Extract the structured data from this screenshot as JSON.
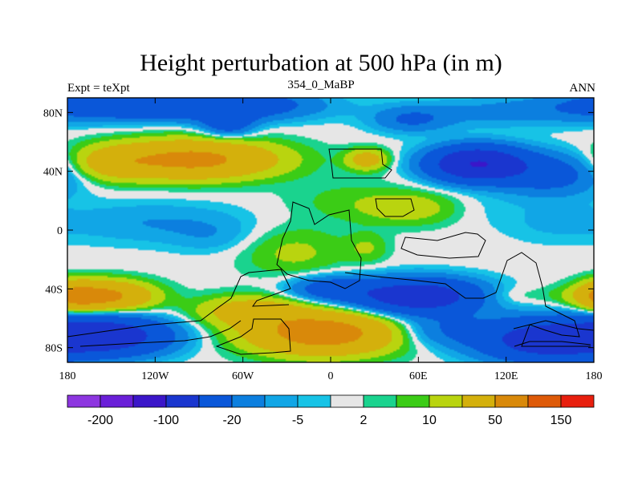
{
  "chart_data": {
    "type": "heatmap",
    "title": "Height perturbation at 500 hPa (in m)",
    "left_string": "Expt = teXpt",
    "center_string": "354_0_MaBP",
    "right_string": "ANN",
    "x_range": [
      -180,
      180
    ],
    "y_range": [
      -90,
      90
    ],
    "x_ticks": [
      {
        "value": -180,
        "label": "180"
      },
      {
        "value": -120,
        "label": "120W"
      },
      {
        "value": -60,
        "label": "60W"
      },
      {
        "value": 0,
        "label": "0"
      },
      {
        "value": 60,
        "label": "60E"
      },
      {
        "value": 120,
        "label": "120E"
      },
      {
        "value": 180,
        "label": "180"
      }
    ],
    "y_ticks": [
      {
        "value": 80,
        "label": "80N"
      },
      {
        "value": 40,
        "label": "40N"
      },
      {
        "value": 0,
        "label": "0"
      },
      {
        "value": -40,
        "label": "40S"
      },
      {
        "value": -80,
        "label": "80S"
      }
    ],
    "colorbar": {
      "colors": [
        "#8d36e0",
        "#6a1fd8",
        "#3b16c9",
        "#1a36cf",
        "#0a57d9",
        "#0c7fdf",
        "#11a6e6",
        "#17c3e6",
        "#e6e6e6",
        "#1ad38e",
        "#3bcc16",
        "#b9d40f",
        "#d4b00c",
        "#d9890a",
        "#de5a08",
        "#e81f0e"
      ],
      "labels": [
        {
          "text": "-200",
          "boundary": 1
        },
        {
          "text": "-100",
          "boundary": 3
        },
        {
          "text": "-20",
          "boundary": 5
        },
        {
          "text": "-5",
          "boundary": 7
        },
        {
          "text": "2",
          "boundary": 9
        },
        {
          "text": "10",
          "boundary": 11
        },
        {
          "text": "50",
          "boundary": 13
        },
        {
          "text": "150",
          "boundary": 15
        }
      ]
    },
    "features": [
      {
        "lon": -150,
        "lat": 85,
        "amp": -35,
        "sx": 40,
        "sy": 7
      },
      {
        "lon": -70,
        "lat": 85,
        "amp": -40,
        "sx": 40,
        "sy": 7
      },
      {
        "lon": -70,
        "lat": 72,
        "amp": -30,
        "sx": 12,
        "sy": 6
      },
      {
        "lon": -95,
        "lat": 48,
        "amp": 60,
        "sx": 40,
        "sy": 9
      },
      {
        "lon": -150,
        "lat": 45,
        "amp": 20,
        "sx": 18,
        "sy": 8
      },
      {
        "lon": 25,
        "lat": 48,
        "amp": 30,
        "sx": 10,
        "sy": 5
      },
      {
        "lon": 55,
        "lat": 75,
        "amp": -20,
        "sx": 18,
        "sy": 6
      },
      {
        "lon": 115,
        "lat": 80,
        "amp": -12,
        "sx": 45,
        "sy": 7
      },
      {
        "lon": 100,
        "lat": 45,
        "amp": -100,
        "sx": 22,
        "sy": 8
      },
      {
        "lon": 150,
        "lat": 38,
        "amp": -30,
        "sx": 25,
        "sy": 10
      },
      {
        "lon": 10,
        "lat": 20,
        "amp": 6,
        "sx": 30,
        "sy": 10
      },
      {
        "lon": 55,
        "lat": 15,
        "amp": 15,
        "sx": 25,
        "sy": 8
      },
      {
        "lon": -25,
        "lat": -15,
        "amp": 12,
        "sx": 25,
        "sy": 12
      },
      {
        "lon": 25,
        "lat": -12,
        "amp": 10,
        "sx": 10,
        "sy": 7
      },
      {
        "lon": -120,
        "lat": 5,
        "amp": -10,
        "sx": 45,
        "sy": 10
      },
      {
        "lon": -80,
        "lat": -5,
        "amp": -6,
        "sx": 20,
        "sy": 8
      },
      {
        "lon": 100,
        "lat": 15,
        "amp": -3,
        "sx": 20,
        "sy": 8
      },
      {
        "lon": 150,
        "lat": 5,
        "amp": -5,
        "sx": 25,
        "sy": 10
      },
      {
        "lon": 120,
        "lat": -45,
        "amp": 8,
        "sx": 20,
        "sy": 5
      },
      {
        "lon": 165,
        "lat": -45,
        "amp": 4,
        "sx": 12,
        "sy": 5
      },
      {
        "lon": -155,
        "lat": -45,
        "amp": 60,
        "sx": 22,
        "sy": 7
      },
      {
        "lon": -175,
        "lat": -45,
        "amp": 30,
        "sx": 10,
        "sy": 7
      },
      {
        "lon": 60,
        "lat": -45,
        "amp": -80,
        "sx": 30,
        "sy": 8
      },
      {
        "lon": 0,
        "lat": -40,
        "amp": -30,
        "sx": 20,
        "sy": 6
      },
      {
        "lon": -55,
        "lat": -55,
        "amp": 30,
        "sx": 25,
        "sy": 7
      },
      {
        "lon": -5,
        "lat": -70,
        "amp": 70,
        "sx": 35,
        "sy": 10
      },
      {
        "lon": -155,
        "lat": -72,
        "amp": -80,
        "sx": 30,
        "sy": 9
      },
      {
        "lon": 145,
        "lat": -75,
        "amp": -70,
        "sx": 30,
        "sy": 10
      },
      {
        "lon": 75,
        "lat": -68,
        "amp": -20,
        "sx": 25,
        "sy": 8
      }
    ]
  }
}
